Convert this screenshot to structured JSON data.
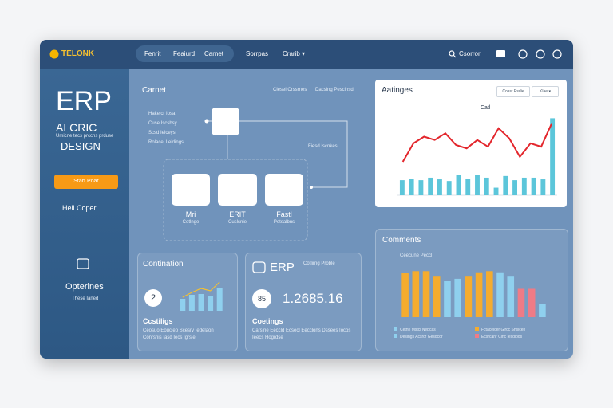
{
  "topbar": {
    "logo": "TELONK",
    "nav": [
      "Fenrit",
      "Feaiurd",
      "Carnet",
      "Sorrpas",
      "Crarib ▾"
    ],
    "search": "Csorror"
  },
  "sidebar": {
    "title": "ERP",
    "subtitle": "ALCRIC",
    "tagline": "Umicne tecs prccns prduse",
    "design": "DESIGN",
    "button": "Start Poar",
    "link": "Hell Coper",
    "section": "Opterines",
    "section_note": "These Ianed"
  },
  "flow": {
    "title": "Carnet",
    "list": [
      "Hakeicr Iosa",
      "Cuse Iscsbsy",
      "Scsd Ieiceys",
      "Rolacel Leidings"
    ],
    "notes": [
      "Clesel Crssrnes",
      "Dacsing Pescinsd",
      "Fiesd Iscnkes"
    ],
    "nodes": [
      {
        "label": "Mri",
        "sub": "Cotlnge"
      },
      {
        "label": "ERIT",
        "sub": "Cuslsnie"
      },
      {
        "label": "Fastl",
        "sub": "Petsalbns"
      }
    ]
  },
  "ratings": {
    "title": "Aatinges",
    "buttons": [
      "Coast Rsdie",
      "Klae ▾"
    ],
    "chart": {
      "type": "line",
      "title": "Catl",
      "ylim": [
        0,
        100
      ],
      "line": {
        "color": "#e3262c",
        "values": [
          40,
          62,
          70,
          66,
          74,
          60,
          56,
          66,
          58,
          80,
          68,
          46,
          62,
          58,
          86
        ]
      },
      "bars": {
        "color": "#5cc6da",
        "values": [
          18,
          20,
          18,
          21,
          19,
          17,
          24,
          20,
          24,
          21,
          9,
          23,
          18,
          21,
          21,
          19,
          92
        ]
      }
    }
  },
  "comments": {
    "title": "Comments",
    "subtitle": "Ceecune Peccl",
    "chart": {
      "type": "bar",
      "ylim": [
        0,
        100
      ],
      "values": [
        75,
        78,
        78,
        70,
        62,
        65,
        70,
        76,
        78,
        76,
        70,
        48,
        48,
        22
      ],
      "colors": [
        "#f5ac2e",
        "#f5ac2e",
        "#f5ac2e",
        "#f5ac2e",
        "#8fd0ee",
        "#8fd0ee",
        "#f5ac2e",
        "#f5ac2e",
        "#f5ac2e",
        "#8fd0ee",
        "#8fd0ee",
        "#ef7b86",
        "#ef7b86",
        "#8fd0ee"
      ]
    },
    "legend": [
      {
        "text": "Cetnrl Mstcl Nebcas",
        "color": "#8fd0ee"
      },
      {
        "text": "Fctacelcer Gircc Snsicen",
        "color": "#f5ac2e"
      },
      {
        "text": "Desings Acsrcr Gesdcor",
        "color": "#8fd0ee"
      },
      {
        "text": "Ecsrcanr Cinc Iesdiods",
        "color": "#ef7b86"
      }
    ]
  },
  "continuation": {
    "title": "Contination",
    "badge": "2",
    "caption": "Ccstiligs",
    "note": "Ceosuo Eoucleo Scesrv Iedelaon Conrsnis Iasd Iecs Igrsle",
    "chart": {
      "type": "bar",
      "ylim": [
        0,
        100
      ],
      "bars": {
        "color": "#8fd0ee",
        "values": [
          30,
          40,
          42,
          36,
          58
        ]
      },
      "line": {
        "color": "#f5c02e",
        "values": [
          34,
          46,
          56,
          50,
          72
        ]
      }
    }
  },
  "erp": {
    "title": "ERP",
    "side": "Cotlirng Proble",
    "badge": "85",
    "value": "1.2685.16",
    "caption": "Coetings",
    "note": "Carsine Eeccld Ecsecl Eecclons Dssees Iocos Ieecs Hogrdse"
  }
}
